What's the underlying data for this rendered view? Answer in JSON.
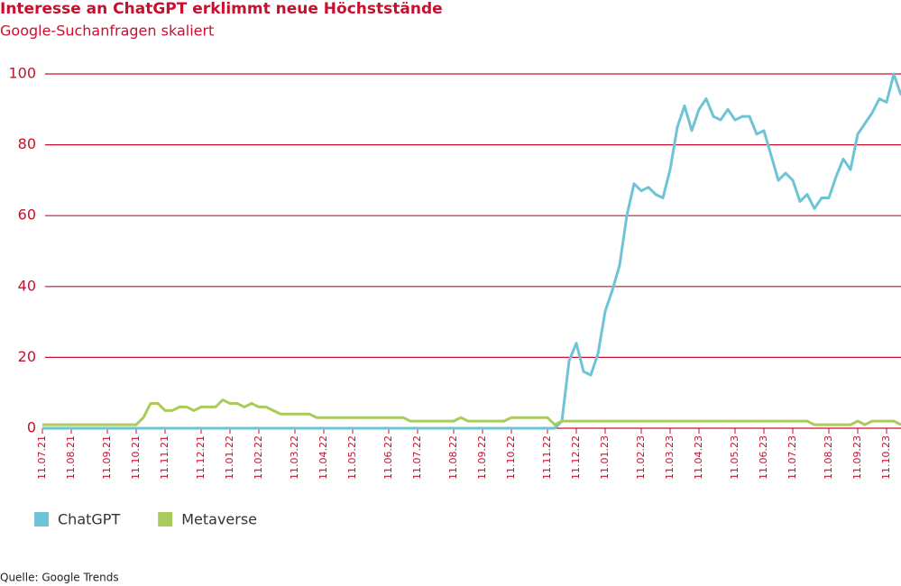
{
  "chart_data": {
    "type": "line",
    "title": "Interesse an ChatGPT erklimmt neue Höchststände",
    "subtitle": "Google-Suchanfragen skaliert",
    "source": "Quelle: Google Trends",
    "categories": [
      "11.07.21",
      null,
      null,
      null,
      "11.08.21",
      null,
      null,
      null,
      null,
      "11.09.21",
      null,
      null,
      null,
      "11.10.21",
      null,
      null,
      null,
      "11.11.21",
      null,
      null,
      null,
      null,
      "11.12.21",
      null,
      null,
      null,
      "11.01.22",
      null,
      null,
      null,
      "11.02.22",
      null,
      null,
      null,
      null,
      "11.03.22",
      null,
      null,
      null,
      "11.04.22",
      null,
      null,
      null,
      "11.05.22",
      null,
      null,
      null,
      null,
      "11.06.22",
      null,
      null,
      null,
      "11.07.22",
      null,
      null,
      null,
      null,
      "11.08.22",
      null,
      null,
      null,
      "11.09.22",
      null,
      null,
      null,
      "11.10.22",
      null,
      null,
      null,
      null,
      "11.11.22",
      null,
      null,
      null,
      "11.12.22",
      null,
      null,
      null,
      "11.01.23",
      null,
      null,
      null,
      null,
      "11.02.23",
      null,
      null,
      null,
      "11.03.23",
      null,
      null,
      null,
      "11.04.23",
      null,
      null,
      null,
      null,
      "11.05.23",
      null,
      null,
      null,
      "11.06.23",
      null,
      null,
      null,
      "11.07.23",
      null,
      null,
      null,
      null,
      "11.08.23",
      null,
      null,
      null,
      "11.09.23",
      null,
      null,
      null,
      "11.10.23",
      null,
      null
    ],
    "series": [
      {
        "name": "ChatGPT",
        "color": "#6ec3d6",
        "values": [
          0,
          0,
          0,
          0,
          0,
          0,
          0,
          0,
          0,
          0,
          0,
          0,
          0,
          0,
          0,
          0,
          0,
          0,
          0,
          0,
          0,
          0,
          0,
          0,
          0,
          0,
          0,
          0,
          0,
          0,
          0,
          0,
          0,
          0,
          0,
          0,
          0,
          0,
          0,
          0,
          0,
          0,
          0,
          0,
          0,
          0,
          0,
          0,
          0,
          0,
          0,
          0,
          0,
          0,
          0,
          0,
          0,
          0,
          0,
          0,
          0,
          0,
          0,
          0,
          0,
          0,
          0,
          0,
          0,
          0,
          0,
          0,
          2,
          19,
          24,
          16,
          15,
          21,
          33,
          39,
          46,
          60,
          69,
          67,
          68,
          66,
          65,
          73,
          85,
          91,
          84,
          90,
          93,
          88,
          87,
          90,
          87,
          88,
          88,
          83,
          84,
          77,
          70,
          72,
          70,
          64,
          66,
          62,
          65,
          65,
          71,
          76,
          73,
          83,
          86,
          89,
          93,
          92,
          100,
          94
        ]
      },
      {
        "name": "Metaverse",
        "color": "#a9cb5b",
        "values": [
          1,
          1,
          1,
          1,
          1,
          1,
          1,
          1,
          1,
          1,
          1,
          1,
          1,
          1,
          3,
          7,
          7,
          5,
          5,
          6,
          6,
          5,
          6,
          6,
          6,
          8,
          7,
          7,
          6,
          7,
          6,
          6,
          5,
          4,
          4,
          4,
          4,
          4,
          3,
          3,
          3,
          3,
          3,
          3,
          3,
          3,
          3,
          3,
          3,
          3,
          3,
          2,
          2,
          2,
          2,
          2,
          2,
          2,
          3,
          2,
          2,
          2,
          2,
          2,
          2,
          3,
          3,
          3,
          3,
          3,
          3,
          1,
          2,
          2,
          2,
          2,
          2,
          2,
          2,
          2,
          2,
          2,
          2,
          2,
          2,
          2,
          2,
          2,
          2,
          2,
          2,
          2,
          2,
          2,
          2,
          2,
          2,
          2,
          2,
          2,
          2,
          2,
          2,
          2,
          2,
          2,
          2,
          1,
          1,
          1,
          1,
          1,
          1,
          2,
          1,
          2,
          2,
          2,
          2,
          1
        ]
      }
    ],
    "ylim": [
      0,
      100
    ],
    "yticks": [
      0,
      20,
      40,
      60,
      80,
      100
    ],
    "grid": true
  }
}
